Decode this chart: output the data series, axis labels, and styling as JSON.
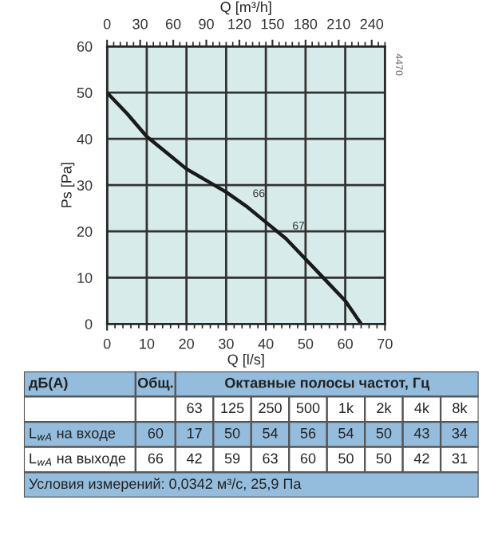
{
  "chart_data": [
    {
      "type": "line",
      "xlabel": "Q [l/s]",
      "ylabel": "Ps [Pa]",
      "x2label": "Q [m³/h]",
      "x": [
        0,
        5,
        10,
        15,
        20,
        25,
        30,
        35,
        40,
        45,
        50,
        55,
        60,
        62,
        64
      ],
      "series": [
        {
          "color": "#1a1a1a",
          "values": [
            50,
            45.5,
            40.5,
            37,
            33.5,
            31,
            28.5,
            25.5,
            22,
            18.5,
            14,
            9.5,
            5,
            2.5,
            0
          ]
        }
      ],
      "xlim": [
        0,
        70
      ],
      "xticks": [
        0,
        10,
        20,
        30,
        40,
        50,
        60,
        70
      ],
      "ylim": [
        0,
        60
      ],
      "yticks": [
        0,
        10,
        20,
        30,
        40,
        50,
        60
      ],
      "x2lim": [
        0,
        252
      ],
      "x2ticks": [
        0,
        30,
        60,
        90,
        120,
        150,
        180,
        210,
        240
      ],
      "grid": true,
      "annotations": [
        {
          "text": "66",
          "x": 35,
          "y": 25.5
        },
        {
          "text": "67",
          "x": 45,
          "y": 18.5
        },
        "4470"
      ]
    },
    {
      "type": "other",
      "ylabel": "дБ(А)",
      "title": "Октавные полосы частот, Гц",
      "categories": [
        "Общ.",
        "63",
        "125",
        "250",
        "500",
        "1k",
        "2k",
        "4k",
        "8k"
      ],
      "y_categories": [
        "L$_{wA}$ на входе",
        "L$_{wA}$ на выходе"
      ],
      "cell_labels": [
        [
          "60",
          "17",
          "50",
          "54",
          "56",
          "54",
          "50",
          "43",
          "34"
        ],
        [
          "66",
          "42",
          "59",
          "63",
          "60",
          "50",
          "50",
          "42",
          "31"
        ]
      ],
      "annotations": [
        "Условия измерений: 0,0342 м³/с, 25,9 Па"
      ]
    }
  ]
}
